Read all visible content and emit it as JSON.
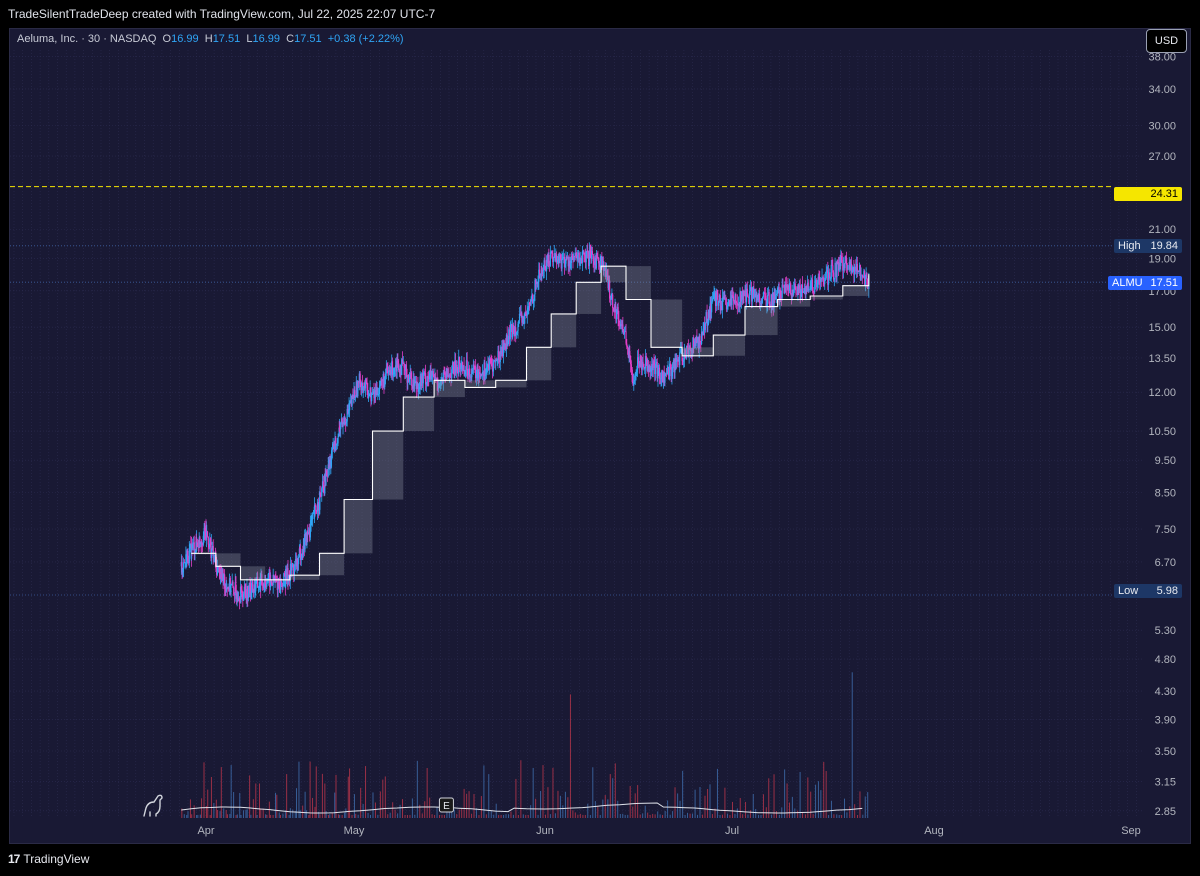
{
  "header": {
    "attribution": "TradeSilentTradeDeep created with TradingView.com, Jul 22, 2025 22:07 UTC-7"
  },
  "legend": {
    "symbol": "Aeluma, Inc. · 30 · NASDAQ",
    "o_label": "O",
    "o": "16.99",
    "h_label": "H",
    "h": "17.51",
    "l_label": "L",
    "l": "16.99",
    "c_label": "C",
    "c": "17.51",
    "change": "+0.38 (+2.22%)"
  },
  "currency_button": "USD",
  "footer": {
    "brand": "TradingView",
    "logo": "17"
  },
  "colors": {
    "background": "#191934",
    "up": "#2fa5f5",
    "down": "#e33fc8",
    "volume_up": "#3d6aa8",
    "volume_down": "#b0344a",
    "line": "#ffffff",
    "alert_line": "#f5e600"
  },
  "icons": {
    "dino": "dinosaur-icon",
    "earnings": "earnings-e-icon"
  },
  "price_labels": {
    "alert": "24.31",
    "high_label": "High",
    "high": "19.84",
    "symbol_tag": "ALMU",
    "last": "17.51",
    "low_label": "Low",
    "low": "5.98"
  },
  "earnings_marker": "E",
  "chart_data": {
    "type": "line",
    "title": "Aeluma, Inc. · 30 · NASDAQ",
    "y_scale": "log",
    "y_ticks": [
      "38.00",
      "34.00",
      "30.00",
      "27.00",
      "21.00",
      "19.00",
      "17.00",
      "15.00",
      "13.50",
      "12.00",
      "10.50",
      "9.50",
      "8.50",
      "7.50",
      "6.70",
      "5.30",
      "4.80",
      "4.30",
      "3.90",
      "3.50",
      "3.15",
      "2.85"
    ],
    "x_ticks": [
      "Apr",
      "May",
      "Jun",
      "Jul",
      "Aug",
      "Sep"
    ],
    "x_tick_dates": [
      "2025-04-01",
      "2025-05-01",
      "2025-06-01",
      "2025-07-01",
      "2025-08-01",
      "2025-09-01"
    ],
    "x_range": [
      "2025-03-20",
      "2025-09-05"
    ],
    "y_range": [
      2.65,
      40.5
    ],
    "alert_level": 24.31,
    "high": 19.84,
    "low": 5.98,
    "last": 17.51,
    "series": [
      {
        "x": [
          "2025-03-27",
          "2025-03-29",
          "2025-04-01",
          "2025-04-03",
          "2025-04-05",
          "2025-04-08",
          "2025-04-10",
          "2025-04-13",
          "2025-04-16",
          "2025-04-19",
          "2025-04-22",
          "2025-04-25",
          "2025-04-28",
          "2025-04-30",
          "2025-05-02",
          "2025-05-04",
          "2025-05-06",
          "2025-05-08",
          "2025-05-11",
          "2025-05-13",
          "2025-05-15",
          "2025-05-18",
          "2025-05-21",
          "2025-05-24",
          "2025-05-27",
          "2025-05-29",
          "2025-05-31",
          "2025-06-02",
          "2025-06-04",
          "2025-06-07",
          "2025-06-10",
          "2025-06-12",
          "2025-06-14",
          "2025-06-15",
          "2025-06-16",
          "2025-06-18",
          "2025-06-20",
          "2025-06-23",
          "2025-06-26",
          "2025-06-28",
          "2025-06-30",
          "2025-07-02",
          "2025-07-04",
          "2025-07-07",
          "2025-07-09",
          "2025-07-12",
          "2025-07-15",
          "2025-07-18",
          "2025-07-21",
          "2025-07-22"
        ],
        "y": [
          6.6,
          7.0,
          7.4,
          6.6,
          6.2,
          6.0,
          6.1,
          6.3,
          6.2,
          6.6,
          7.5,
          8.8,
          10.6,
          11.3,
          12.5,
          11.8,
          12.6,
          13.3,
          12.3,
          12.7,
          12.4,
          13.2,
          12.8,
          13.3,
          15.0,
          15.6,
          17.9,
          19.2,
          18.8,
          19.0,
          18.9,
          16.2,
          14.5,
          12.5,
          13.4,
          13.2,
          12.6,
          13.6,
          14.4,
          16.6,
          16.1,
          16.5,
          16.8,
          16.4,
          17.0,
          16.9,
          17.6,
          18.7,
          18.1,
          17.5
        ]
      },
      {
        "x": [
          "2025-03-29",
          "2025-04-03",
          "2025-04-08",
          "2025-04-13",
          "2025-04-18",
          "2025-04-24",
          "2025-04-29",
          "2025-05-04",
          "2025-05-09",
          "2025-05-14",
          "2025-05-19",
          "2025-05-24",
          "2025-05-29",
          "2025-06-02",
          "2025-06-06",
          "2025-06-10",
          "2025-06-14",
          "2025-06-18",
          "2025-06-23",
          "2025-06-28",
          "2025-07-03",
          "2025-07-08",
          "2025-07-13",
          "2025-07-18",
          "2025-07-22"
        ],
        "y": [
          6.9,
          6.6,
          6.3,
          6.3,
          6.4,
          6.9,
          8.3,
          10.5,
          11.8,
          12.5,
          12.2,
          12.5,
          14.0,
          15.7,
          17.5,
          18.5,
          16.5,
          14.0,
          13.6,
          14.6,
          16.1,
          16.5,
          16.7,
          17.3,
          18.0
        ]
      }
    ],
    "volume_max_ratio": 1.0
  }
}
